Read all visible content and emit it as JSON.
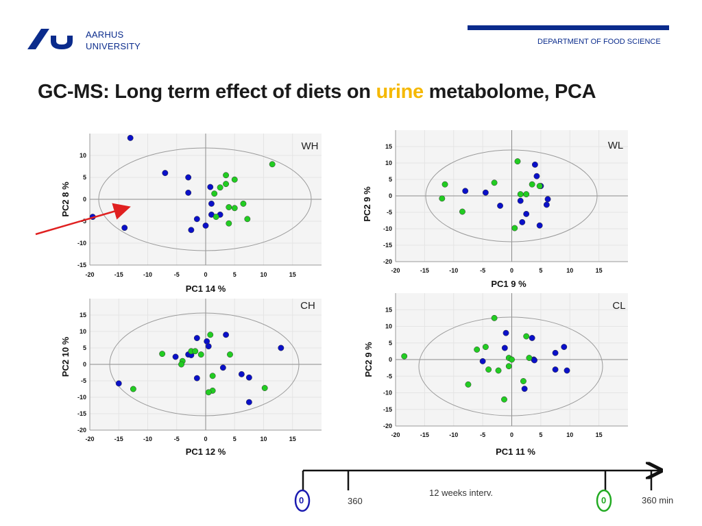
{
  "header": {
    "university": [
      "AARHUS",
      "UNIVERSITY"
    ],
    "department": "DEPARTMENT OF FOOD SCIENCE"
  },
  "title": {
    "prefix": "GC-MS: Long term effect of diets on ",
    "highlight": "urine",
    "suffix": " metabolome, PCA"
  },
  "colors": {
    "blue_series": "#0a10c8",
    "green_series": "#22cc22",
    "arrow": "#e02020",
    "brand": "#0a2b8c",
    "highlight": "#f5b800"
  },
  "chart_data": [
    {
      "type": "scatter",
      "id": "WH",
      "title": "WH",
      "xlabel": "PC1 14 %",
      "ylabel": "PC2 8 %",
      "xlim": [
        -20,
        20
      ],
      "ylim": [
        -15,
        15
      ],
      "xticks": [
        -20,
        -15,
        -10,
        -5,
        0,
        5,
        10,
        15
      ],
      "yticks": [
        -15,
        -10,
        -5,
        0,
        5,
        10
      ],
      "series": [
        {
          "name": "blue",
          "points": [
            [
              -13,
              14
            ],
            [
              -7,
              6
            ],
            [
              -3,
              5
            ],
            [
              -3,
              1.5
            ],
            [
              0.8,
              2.8
            ],
            [
              1,
              -1
            ],
            [
              1,
              -3.5
            ],
            [
              2.5,
              -3.5
            ],
            [
              0,
              -6
            ],
            [
              -1.5,
              -4.5
            ],
            [
              -2.5,
              -7
            ],
            [
              -14,
              -6.5
            ],
            [
              -19.5,
              -4
            ]
          ]
        },
        {
          "name": "green",
          "points": [
            [
              11.5,
              8
            ],
            [
              3.5,
              5.5
            ],
            [
              5,
              4.5
            ],
            [
              3.5,
              3.5
            ],
            [
              2.5,
              2.7
            ],
            [
              1.5,
              1.3
            ],
            [
              6.5,
              -1
            ],
            [
              4,
              -1.8
            ],
            [
              5,
              -2
            ],
            [
              1.8,
              -4
            ],
            [
              4,
              -5.5
            ],
            [
              7.2,
              -4.5
            ]
          ]
        }
      ]
    },
    {
      "type": "scatter",
      "id": "WL",
      "title": "WL",
      "xlabel": "PC1 9 %",
      "ylabel": "PC2 9 %",
      "xlim": [
        -20,
        20
      ],
      "ylim": [
        -20,
        20
      ],
      "xticks": [
        -20,
        -15,
        -10,
        -5,
        0,
        5,
        10,
        15
      ],
      "yticks": [
        -20,
        -15,
        -10,
        -5,
        0,
        5,
        10,
        15
      ],
      "series": [
        {
          "name": "blue",
          "points": [
            [
              4,
              9.5
            ],
            [
              4.3,
              6
            ],
            [
              5,
              3
            ],
            [
              6.2,
              -1
            ],
            [
              6,
              -2.7
            ],
            [
              -8,
              1.5
            ],
            [
              -4.5,
              1
            ],
            [
              -2,
              -3
            ],
            [
              1.5,
              -1.5
            ],
            [
              2.5,
              -5.5
            ],
            [
              1.8,
              -8
            ],
            [
              4.8,
              -9
            ]
          ]
        },
        {
          "name": "green",
          "points": [
            [
              1,
              10.5
            ],
            [
              -11.5,
              3.5
            ],
            [
              -3,
              4
            ],
            [
              3.5,
              3.5
            ],
            [
              4.8,
              3
            ],
            [
              1.5,
              0.5
            ],
            [
              2.5,
              0.5
            ],
            [
              -12,
              -0.8
            ],
            [
              -8.5,
              -4.8
            ],
            [
              0.5,
              -9.8
            ]
          ]
        }
      ]
    },
    {
      "type": "scatter",
      "id": "CH",
      "title": "CH",
      "xlabel": "PC1 12 %",
      "ylabel": "PC2 10 %",
      "xlim": [
        -20,
        20
      ],
      "ylim": [
        -20,
        20
      ],
      "xticks": [
        -20,
        -15,
        -10,
        -5,
        0,
        5,
        10,
        15
      ],
      "yticks": [
        -20,
        -15,
        -10,
        -5,
        0,
        5,
        10,
        15
      ],
      "series": [
        {
          "name": "blue",
          "points": [
            [
              13,
              5
            ],
            [
              3.5,
              9
            ],
            [
              -1.5,
              8
            ],
            [
              0.2,
              7
            ],
            [
              0.5,
              5.5
            ],
            [
              -3,
              3
            ],
            [
              -2.5,
              2.8
            ],
            [
              -5.2,
              2.3
            ],
            [
              -1.5,
              -4.2
            ],
            [
              3,
              -1
            ],
            [
              6.2,
              -3
            ],
            [
              7.5,
              -4
            ],
            [
              7.5,
              -11.5
            ],
            [
              -15,
              -5.8
            ]
          ]
        },
        {
          "name": "green",
          "points": [
            [
              0.8,
              9
            ],
            [
              -7.5,
              3.2
            ],
            [
              -2.5,
              4
            ],
            [
              -1.8,
              4
            ],
            [
              -0.8,
              3
            ],
            [
              4.2,
              3
            ],
            [
              -4,
              1
            ],
            [
              -4.2,
              0
            ],
            [
              1.2,
              -3.5
            ],
            [
              10.2,
              -7.2
            ],
            [
              1.2,
              -8
            ],
            [
              0.5,
              -8.5
            ],
            [
              -12.5,
              -7.5
            ]
          ]
        }
      ]
    },
    {
      "type": "scatter",
      "id": "CL",
      "title": "CL",
      "xlabel": "PC1 11 %",
      "ylabel": "PC2 9 %",
      "xlim": [
        -20,
        20
      ],
      "ylim": [
        -20,
        20
      ],
      "xticks": [
        -20,
        -15,
        -10,
        -5,
        0,
        5,
        10,
        15
      ],
      "yticks": [
        -20,
        -15,
        -10,
        -5,
        0,
        5,
        10,
        15
      ],
      "series": [
        {
          "name": "blue",
          "points": [
            [
              -1,
              8
            ],
            [
              3.5,
              6.5
            ],
            [
              9,
              3.8
            ],
            [
              7.5,
              2
            ],
            [
              -1.2,
              3.5
            ],
            [
              -5,
              -0.5
            ],
            [
              3.8,
              0
            ],
            [
              3.9,
              -0.2
            ],
            [
              7.5,
              -3
            ],
            [
              9.5,
              -3.3
            ],
            [
              2.2,
              -8.8
            ]
          ]
        },
        {
          "name": "green",
          "points": [
            [
              -3,
              12.5
            ],
            [
              2.5,
              7
            ],
            [
              -4.5,
              3.8
            ],
            [
              -6,
              3
            ],
            [
              -18.5,
              1
            ],
            [
              -0.5,
              0.5
            ],
            [
              0,
              0
            ],
            [
              3,
              0.5
            ],
            [
              -0.5,
              -2
            ],
            [
              -4,
              -3
            ],
            [
              -2.3,
              -3.3
            ],
            [
              2,
              -6.5
            ],
            [
              -7.5,
              -7.5
            ],
            [
              -1.3,
              -12
            ]
          ]
        }
      ]
    }
  ],
  "timeline": {
    "start_marker": "0",
    "interval_value": "360",
    "caption": "12 weeks interv.",
    "end_marker": "0",
    "end_value": "360 min"
  }
}
